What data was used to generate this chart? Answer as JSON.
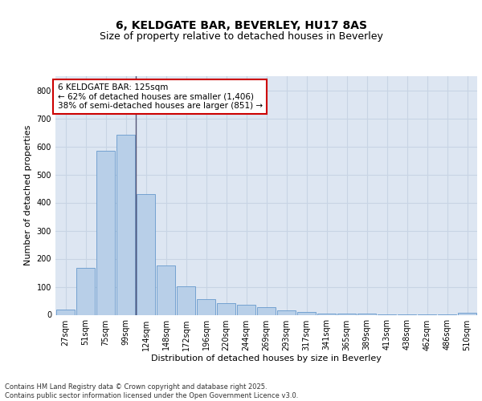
{
  "title1": "6, KELDGATE BAR, BEVERLEY, HU17 8AS",
  "title2": "Size of property relative to detached houses in Beverley",
  "xlabel": "Distribution of detached houses by size in Beverley",
  "ylabel": "Number of detached properties",
  "categories": [
    "27sqm",
    "51sqm",
    "75sqm",
    "99sqm",
    "124sqm",
    "148sqm",
    "172sqm",
    "196sqm",
    "220sqm",
    "244sqm",
    "269sqm",
    "293sqm",
    "317sqm",
    "341sqm",
    "365sqm",
    "389sqm",
    "413sqm",
    "438sqm",
    "462sqm",
    "486sqm",
    "510sqm"
  ],
  "values": [
    20,
    168,
    583,
    641,
    430,
    175,
    102,
    55,
    42,
    35,
    27,
    15,
    10,
    5,
    4,
    3,
    2,
    1,
    1,
    1,
    7
  ],
  "bar_color": "#b8cfe8",
  "bar_edge_color": "#6699cc",
  "annotation_text": "6 KELDGATE BAR: 125sqm\n← 62% of detached houses are smaller (1,406)\n38% of semi-detached houses are larger (851) →",
  "annotation_box_color": "#ffffff",
  "annotation_box_edge_color": "#cc0000",
  "vline_color": "#555577",
  "grid_color": "#c8d4e4",
  "bg_color": "#dde6f2",
  "yticks": [
    0,
    100,
    200,
    300,
    400,
    500,
    600,
    700,
    800
  ],
  "ylim": [
    0,
    850
  ],
  "footer": "Contains HM Land Registry data © Crown copyright and database right 2025.\nContains public sector information licensed under the Open Government Licence v3.0.",
  "title_fontsize": 10,
  "subtitle_fontsize": 9,
  "axis_label_fontsize": 8,
  "tick_label_fontsize": 7,
  "annotation_fontsize": 7.5
}
